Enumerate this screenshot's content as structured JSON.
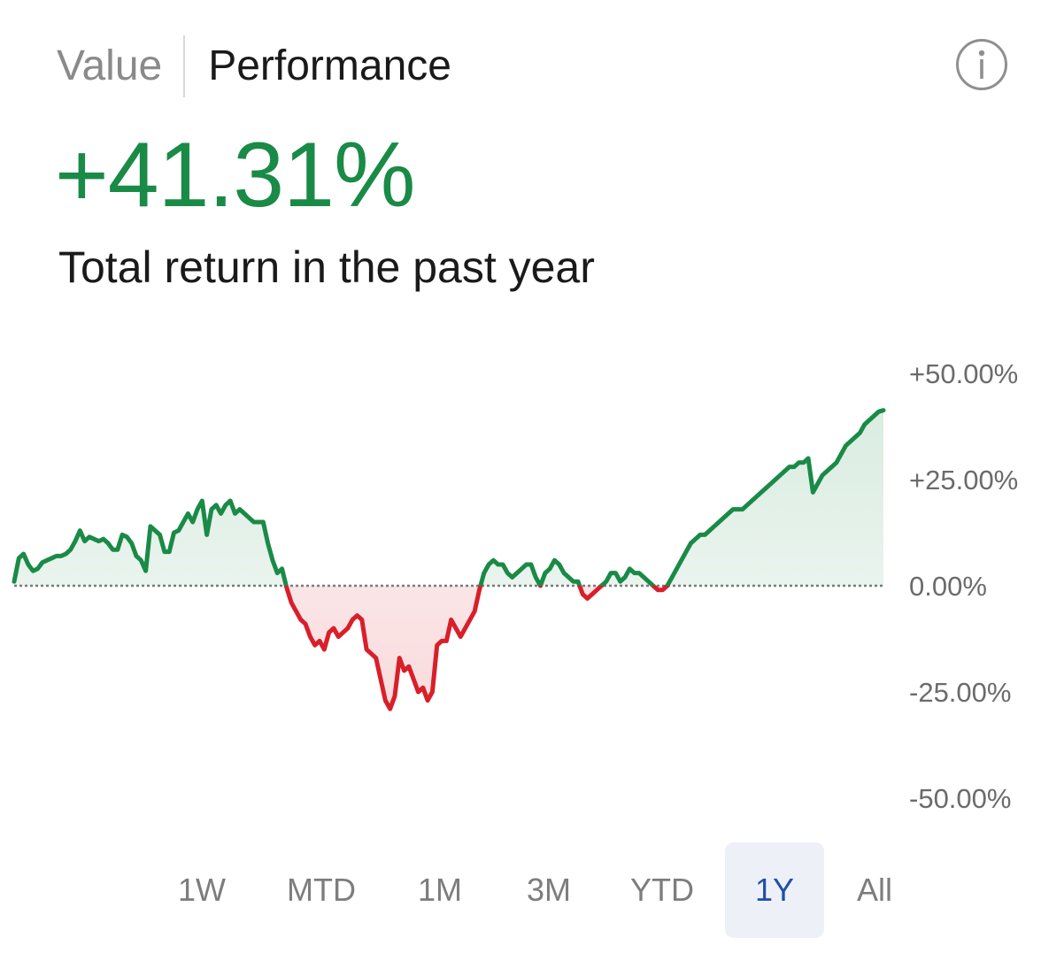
{
  "tabs": {
    "value": "Value",
    "performance": "Performance"
  },
  "headline": {
    "value": "+41.31%",
    "subtitle": "Total return in the past year"
  },
  "colors": {
    "positive": "#1a8a47",
    "negative": "#d81f2a",
    "selected_range": "#1f4fa8"
  },
  "icons": {
    "info": "info-circle-icon"
  },
  "ranges": [
    "1W",
    "MTD",
    "1M",
    "3M",
    "YTD",
    "1Y",
    "All"
  ],
  "selected_range": "1Y",
  "chart_data": {
    "type": "line",
    "title": "",
    "xlabel": "",
    "ylabel": "",
    "ylim": [
      -50,
      50
    ],
    "y_ticks": [
      50,
      25,
      0,
      -25,
      -50
    ],
    "y_tick_labels": [
      "+50.00%",
      "+25.00%",
      "0.00%",
      "-25.00%",
      "-50.00%"
    ],
    "baseline": 0,
    "grid": false,
    "legend": "none",
    "series": [
      {
        "values": [
          1,
          6.5,
          7.5,
          5,
          3.5,
          4,
          5.5,
          6,
          6.5,
          7,
          7,
          7.5,
          8.5,
          10.5,
          13,
          10.5,
          11.5,
          11,
          10.5,
          11,
          10,
          8.5,
          8.5,
          12,
          11.5,
          10,
          7,
          6,
          3.5,
          14,
          13,
          12,
          8,
          8,
          12.5,
          13,
          15,
          17,
          15,
          18,
          20,
          12,
          18,
          19,
          17,
          19,
          20,
          17,
          18,
          17,
          16,
          15,
          15,
          15,
          10,
          6,
          3,
          4,
          -0.5,
          -4,
          -6,
          -8,
          -9,
          -12,
          -14,
          -13,
          -15,
          -11,
          -10,
          -12,
          -11,
          -10,
          -8,
          -7,
          -8,
          -15,
          -16,
          -17,
          -22,
          -27,
          -29,
          -26,
          -17,
          -20,
          -19,
          -22,
          -25,
          -24,
          -27,
          -25,
          -14,
          -13,
          -13,
          -8,
          -10,
          -12,
          -10,
          -8,
          -6,
          -1,
          3,
          5,
          6,
          5,
          5,
          3,
          2,
          3,
          4,
          5,
          5,
          2,
          0,
          3,
          4,
          6,
          5,
          3,
          2,
          1,
          1,
          -2,
          -3,
          -2,
          -1,
          0,
          1,
          3,
          3,
          1,
          2,
          4,
          3,
          3,
          2,
          1,
          0,
          -1,
          -1,
          0,
          2,
          4,
          6,
          8,
          10,
          11,
          12,
          12,
          13,
          14,
          15,
          16,
          17,
          18,
          18,
          18,
          19,
          20,
          21,
          22,
          23,
          24,
          25,
          26,
          27,
          28,
          28,
          29,
          29,
          30,
          22,
          24,
          26,
          27,
          28,
          29,
          31,
          33,
          34,
          35,
          36,
          38,
          39,
          40,
          41,
          41.31
        ]
      }
    ]
  }
}
